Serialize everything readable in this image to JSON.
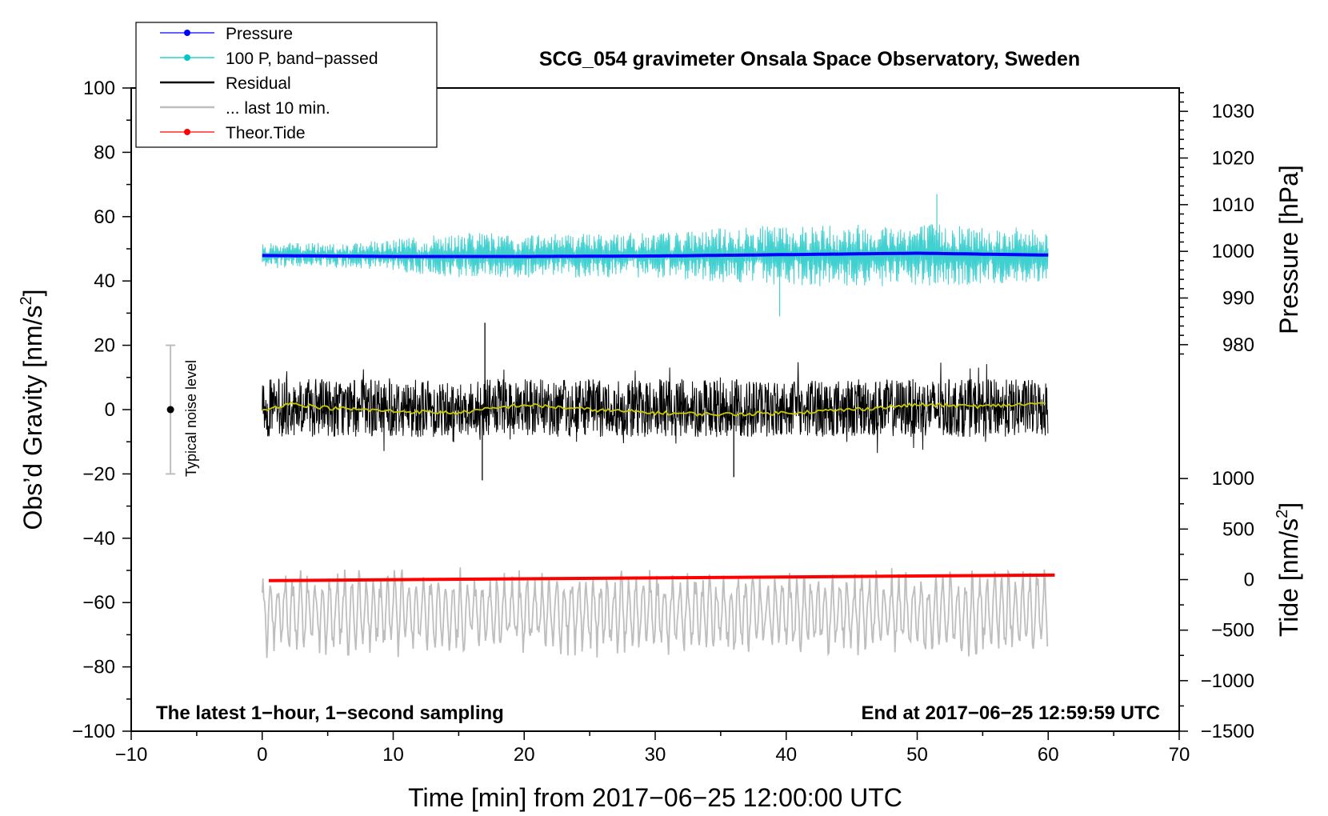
{
  "chart_data": {
    "type": "line",
    "title": "SCG_054 gravimeter Onsala Space Observatory, Sweden",
    "xlabel": "Time [min] from 2017−06−25 12:00:00 UTC",
    "ylabel_left": "Obs’d Gravity [nm/s",
    "ylabel_left_sup": "2",
    "ylabel_left_close": "]",
    "ylabel_right_pressure": "Pressure [hPa]",
    "ylabel_right_tide": "Tide [nm/s",
    "ylabel_right_tide_sup": "2",
    "ylabel_right_tide_close": "]",
    "xlim": [
      -10,
      70
    ],
    "ylim": [
      -100,
      100
    ],
    "pressure_lim": [
      975,
      1035
    ],
    "tide_lim": [
      -1500,
      1500
    ],
    "x_ticks": [
      {
        "v": -10,
        "label": "−10"
      },
      {
        "v": 0,
        "label": "0"
      },
      {
        "v": 10,
        "label": "10"
      },
      {
        "v": 20,
        "label": "20"
      },
      {
        "v": 30,
        "label": "30"
      },
      {
        "v": 40,
        "label": "40"
      },
      {
        "v": 50,
        "label": "50"
      },
      {
        "v": 60,
        "label": "60"
      },
      {
        "v": 70,
        "label": "70"
      }
    ],
    "y_ticks": [
      {
        "v": 100,
        "label": "100"
      },
      {
        "v": 80,
        "label": "80"
      },
      {
        "v": 60,
        "label": "60"
      },
      {
        "v": 40,
        "label": "40"
      },
      {
        "v": 20,
        "label": "20"
      },
      {
        "v": 0,
        "label": "0"
      },
      {
        "v": -20,
        "label": "−20"
      },
      {
        "v": -40,
        "label": "−40"
      },
      {
        "v": -60,
        "label": "−60"
      },
      {
        "v": -80,
        "label": "−80"
      },
      {
        "v": -100,
        "label": "−100"
      }
    ],
    "pressure_ticks": [
      {
        "v": 1030,
        "label": "1030"
      },
      {
        "v": 1020,
        "label": "1020"
      },
      {
        "v": 1010,
        "label": "1010"
      },
      {
        "v": 1000,
        "label": "1000"
      },
      {
        "v": 990,
        "label": "990"
      },
      {
        "v": 980,
        "label": "980"
      }
    ],
    "tide_ticks": [
      {
        "v": 1000,
        "label": "1000"
      },
      {
        "v": 500,
        "label": "500"
      },
      {
        "v": 0,
        "label": "0"
      },
      {
        "v": -500,
        "label": "−500"
      },
      {
        "v": -1000,
        "label": "−1000"
      },
      {
        "v": -1500,
        "label": "−1500"
      }
    ],
    "legend": [
      {
        "label": "Pressure",
        "color": "#0000ff",
        "marker": true
      },
      {
        "label": "100 P, band−passed",
        "color": "#00c8c8",
        "marker": true
      },
      {
        "label": "Residual",
        "color": "#000000",
        "marker": false
      },
      {
        "label": "... last 10 min.",
        "color": "#bebebe",
        "marker": false
      },
      {
        "label": "Theor.Tide",
        "color": "#ff0000",
        "marker": true
      }
    ],
    "series": [
      {
        "name": "Pressure",
        "axis": "pressure",
        "color": "#0000ff",
        "x": [
          0,
          10,
          20,
          30,
          40,
          50,
          60
        ],
        "values": [
          999.1,
          998.9,
          998.9,
          999.0,
          999.3,
          999.6,
          999.2
        ]
      },
      {
        "name": "100 P, band−passed",
        "axis": "left",
        "color": "#40d0d0",
        "x_range": [
          0,
          60
        ],
        "center": 48,
        "amplitude": [
          4,
          4,
          7,
          7,
          7,
          9,
          10,
          10,
          8
        ],
        "spikes": [
          {
            "x": 39.5,
            "y": 29
          },
          {
            "x": 51.5,
            "y": 67
          }
        ]
      },
      {
        "name": "Residual",
        "axis": "left",
        "color": "#000000",
        "x_range": [
          0,
          60
        ],
        "center": 0.5,
        "amplitude": 9,
        "spikes": [
          {
            "x": 17,
            "y": 27
          },
          {
            "x": 16.8,
            "y": -22
          },
          {
            "x": 36,
            "y": -21
          }
        ]
      },
      {
        "name": "Residual smoothed",
        "axis": "left",
        "color": "#c8c800",
        "x": [
          0,
          2,
          5,
          10,
          15,
          20,
          25,
          30,
          35,
          40,
          45,
          50,
          55,
          60
        ],
        "values": [
          -0.5,
          2,
          0.5,
          -0.5,
          -1,
          1.5,
          0,
          -1,
          -1.5,
          -1,
          0,
          1.5,
          1,
          2
        ]
      },
      {
        "name": "... last 10 min.",
        "axis": "left",
        "color": "#bebebe",
        "x_range": [
          0,
          60
        ],
        "center": -63,
        "amplitude": 13
      },
      {
        "name": "Theor.Tide",
        "axis": "tide",
        "color": "#ff0000",
        "x": [
          0.5,
          60.5
        ],
        "values": [
          -10,
          45
        ]
      }
    ],
    "noise_bar": {
      "x": -7,
      "low": -20,
      "high": 20,
      "center": 0,
      "label": "Typical noise level"
    },
    "annotations": {
      "left": "The latest 1−hour, 1−second sampling",
      "right": "End at 2017−06−25 12:59:59 UTC"
    }
  }
}
